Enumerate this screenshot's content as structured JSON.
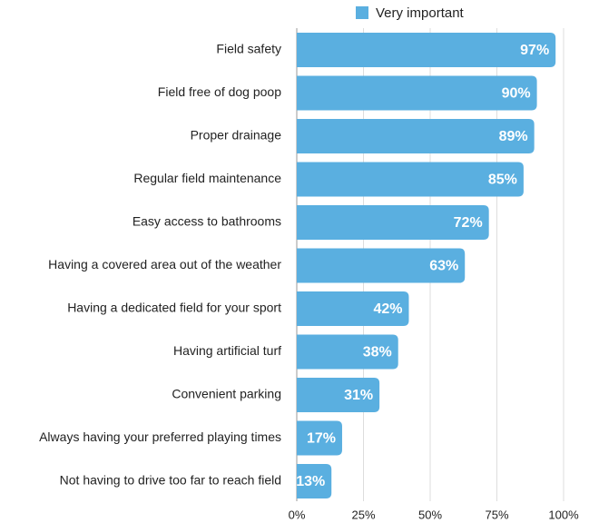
{
  "chart_data": {
    "type": "bar",
    "orientation": "horizontal",
    "categories": [
      "Field safety",
      "Field free of dog poop",
      "Proper drainage",
      "Regular field maintenance",
      "Easy access to bathrooms",
      "Having a covered area out of the weather",
      "Having a dedicated field for your sport",
      "Having artificial turf",
      "Convenient parking",
      "Always having your preferred playing times",
      "Not having to drive too far to reach field"
    ],
    "series": [
      {
        "name": "Very important",
        "color": "#5aafe0",
        "values": [
          97,
          90,
          89,
          85,
          72,
          63,
          42,
          38,
          31,
          17,
          13
        ],
        "value_labels": [
          "97%",
          "90%",
          "89%",
          "85%",
          "72%",
          "63%",
          "42%",
          "38%",
          "31%",
          "17%",
          "13%"
        ]
      }
    ],
    "xlim": [
      0,
      100
    ],
    "xticks": [
      {
        "value": 0,
        "label": "0%"
      },
      {
        "value": 25,
        "label": "25%"
      },
      {
        "value": 50,
        "label": "50%"
      },
      {
        "value": 75,
        "label": "75%"
      },
      {
        "value": 100,
        "label": "100%"
      }
    ],
    "grid": true,
    "legend": "top"
  }
}
